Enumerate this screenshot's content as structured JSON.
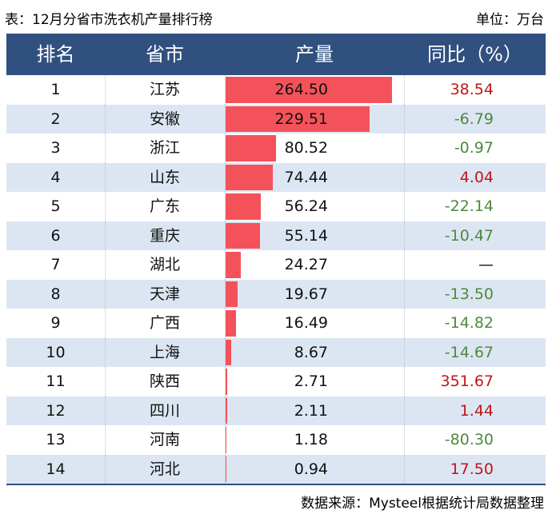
{
  "header": {
    "title": "表：12月分省市洗衣机产量排行榜",
    "unit": "单位：万台"
  },
  "table": {
    "columns": [
      "排名",
      "省市",
      "产量",
      "同比（%）"
    ],
    "rows": [
      [
        "1",
        "江苏",
        "264.50",
        "38.54"
      ],
      [
        "2",
        "安徽",
        "229.51",
        "-6.79"
      ],
      [
        "3",
        "浙江",
        "80.52",
        "-0.97"
      ],
      [
        "4",
        "山东",
        "74.44",
        "4.04"
      ],
      [
        "5",
        "广东",
        "56.24",
        "-22.14"
      ],
      [
        "6",
        "重庆",
        "55.14",
        "-10.47"
      ],
      [
        "7",
        "湖北",
        "24.27",
        "—"
      ],
      [
        "8",
        "天津",
        "19.67",
        "-13.50"
      ],
      [
        "9",
        "广西",
        "16.49",
        "-14.82"
      ],
      [
        "10",
        "上海",
        "8.67",
        "-14.67"
      ],
      [
        "11",
        "陕西",
        "2.71",
        "351.67"
      ],
      [
        "12",
        "四川",
        "2.11",
        "1.44"
      ],
      [
        "13",
        "河南",
        "1.18",
        "-80.30"
      ],
      [
        "14",
        "河北",
        "0.94",
        "17.50"
      ]
    ]
  },
  "footer": "数据来源：Mysteel根据统计局数据整理"
}
